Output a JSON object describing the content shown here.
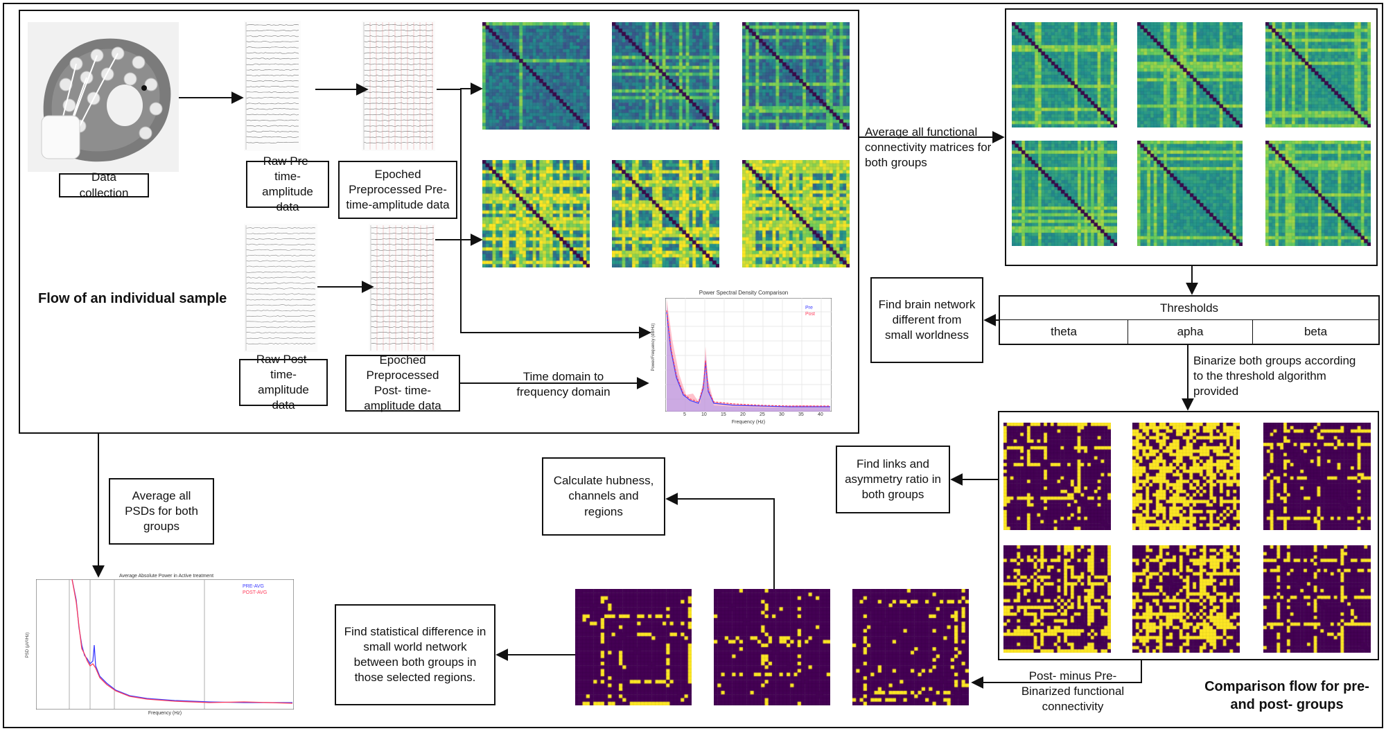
{
  "labels": {
    "data_collection": "Data collection",
    "raw_pre": "Raw Pre- time-amplitude data",
    "epoched_pre": "Epoched Preprocessed Pre- time-amplitude data",
    "raw_post": "Raw Post- time-amplitude data",
    "epoched_post": "Epoched Preprocessed Post- time-amplitude data",
    "time_to_freq": "Time domain to frequency domain",
    "flow_individual": "Flow of an individual sample",
    "average_matrices": "Average all functional connectivity matrices for both groups",
    "find_brain_network": "Find brain network different from small worldness",
    "thresholds_title": "Thresholds",
    "threshold_bands": [
      "theta",
      "apha",
      "beta"
    ],
    "binarize": "Binarize both groups according to the threshold algorithm provided",
    "find_links": "Find links and asymmetry ratio in both groups",
    "calculate_hubness": "Calculate hubness, channels and regions",
    "post_minus_pre": "Post- minus Pre- Binarized functional connectivity",
    "find_statistical": "Find statistical difference in small world network between both groups in those selected regions.",
    "average_psds": "Average all PSDs for both groups",
    "comparison_flow": "Comparison flow for pre- and post- groups"
  },
  "psd_chart": {
    "title": "Power Spectral Density Comparison",
    "xlabel": "Frequency (Hz)",
    "ylabel": "Power/Frequency (dB/Hz)",
    "legend": [
      "Pre",
      "Post"
    ],
    "xticks": [
      "5",
      "10",
      "15",
      "20",
      "25",
      "30",
      "35",
      "40"
    ],
    "colors": {
      "pre": "#3b3bff",
      "post": "#ff3b5a"
    }
  },
  "avg_chart": {
    "title": "Average Absolute Power in Active treatment",
    "xlabel": "Frequency (Hz)",
    "ylabel": "PSD (μV²/Hz)",
    "legend": [
      "PRE-AVG",
      "POST-AVG"
    ],
    "colors": {
      "pre": "#3b3bff",
      "post": "#ff3b5a"
    }
  },
  "colors": {
    "viridis_dark": "#440154",
    "viridis_yellow": "#fde725"
  }
}
